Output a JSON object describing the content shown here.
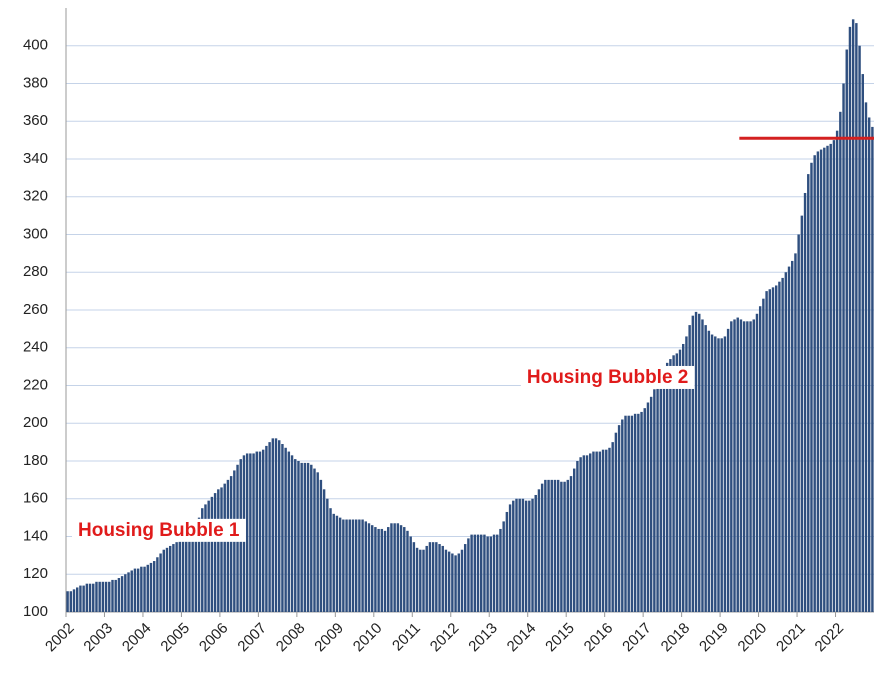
{
  "chart_data": {
    "type": "bar",
    "color": "#2f4f7f",
    "grid": true,
    "ylim": [
      100,
      420
    ],
    "yticks": [
      100,
      120,
      140,
      160,
      180,
      200,
      220,
      240,
      260,
      280,
      300,
      320,
      340,
      360,
      380,
      400
    ],
    "annotations": [
      {
        "text": "Housing Bubble 1",
        "value": 143,
        "index": 0
      },
      {
        "text": "Housing Bubble 2",
        "value": 224,
        "index": 140
      }
    ],
    "reference_line": {
      "value": 351,
      "start": 210,
      "color": "#d42020"
    },
    "categories": [
      "2002",
      null,
      null,
      null,
      null,
      null,
      null,
      null,
      null,
      null,
      null,
      null,
      "2003",
      null,
      null,
      null,
      null,
      null,
      null,
      null,
      null,
      null,
      null,
      null,
      "2004",
      null,
      null,
      null,
      null,
      null,
      null,
      null,
      null,
      null,
      null,
      null,
      "2005",
      null,
      null,
      null,
      null,
      null,
      null,
      null,
      null,
      null,
      null,
      null,
      "2006",
      null,
      null,
      null,
      null,
      null,
      null,
      null,
      null,
      null,
      null,
      null,
      "2007",
      null,
      null,
      null,
      null,
      null,
      null,
      null,
      null,
      null,
      null,
      null,
      "2008",
      null,
      null,
      null,
      null,
      null,
      null,
      null,
      null,
      null,
      null,
      null,
      "2009",
      null,
      null,
      null,
      null,
      null,
      null,
      null,
      null,
      null,
      null,
      null,
      "2010",
      null,
      null,
      null,
      null,
      null,
      null,
      null,
      null,
      null,
      null,
      null,
      "2011",
      null,
      null,
      null,
      null,
      null,
      null,
      null,
      null,
      null,
      null,
      null,
      "2012",
      null,
      null,
      null,
      null,
      null,
      null,
      null,
      null,
      null,
      null,
      null,
      "2013",
      null,
      null,
      null,
      null,
      null,
      null,
      null,
      null,
      null,
      null,
      null,
      "2014",
      null,
      null,
      null,
      null,
      null,
      null,
      null,
      null,
      null,
      null,
      null,
      "2015",
      null,
      null,
      null,
      null,
      null,
      null,
      null,
      null,
      null,
      null,
      null,
      "2016",
      null,
      null,
      null,
      null,
      null,
      null,
      null,
      null,
      null,
      null,
      null,
      "2017",
      null,
      null,
      null,
      null,
      null,
      null,
      null,
      null,
      null,
      null,
      null,
      "2018",
      null,
      null,
      null,
      null,
      null,
      null,
      null,
      null,
      null,
      null,
      null,
      "2019",
      null,
      null,
      null,
      null,
      null,
      null,
      null,
      null,
      null,
      null,
      null,
      "2020",
      null,
      null,
      null,
      null,
      null,
      null,
      null,
      null,
      null,
      null,
      null,
      "2021",
      null,
      null,
      null,
      null,
      null,
      null,
      null,
      null,
      null,
      null,
      null,
      "2022",
      null,
      null,
      null,
      null,
      null,
      null,
      null,
      null,
      null,
      null,
      null
    ],
    "values": [
      111,
      111,
      112,
      113,
      114,
      114,
      115,
      115,
      115,
      116,
      116,
      116,
      116,
      116,
      117,
      117,
      118,
      119,
      120,
      121,
      122,
      123,
      123,
      124,
      124,
      125,
      126,
      127,
      129,
      131,
      133,
      134,
      135,
      136,
      137,
      138,
      138,
      139,
      140,
      142,
      145,
      150,
      155,
      157,
      159,
      161,
      163,
      165,
      166,
      168,
      170,
      172,
      175,
      178,
      181,
      183,
      184,
      184,
      184,
      185,
      185,
      186,
      188,
      190,
      192,
      192,
      191,
      189,
      187,
      185,
      183,
      181,
      180,
      179,
      179,
      179,
      178,
      176,
      174,
      170,
      165,
      160,
      155,
      152,
      151,
      150,
      149,
      149,
      149,
      149,
      149,
      149,
      149,
      148,
      147,
      146,
      145,
      144,
      144,
      143,
      145,
      147,
      147,
      147,
      146,
      145,
      143,
      140,
      137,
      134,
      133,
      133,
      135,
      137,
      137,
      137,
      136,
      135,
      133,
      132,
      131,
      130,
      131,
      133,
      136,
      139,
      141,
      141,
      141,
      141,
      141,
      140,
      140,
      141,
      141,
      144,
      148,
      153,
      157,
      159,
      160,
      160,
      160,
      159,
      159,
      160,
      162,
      165,
      168,
      170,
      170,
      170,
      170,
      170,
      169,
      169,
      170,
      172,
      176,
      180,
      182,
      183,
      183,
      184,
      185,
      185,
      185,
      186,
      186,
      187,
      190,
      195,
      199,
      202,
      204,
      204,
      204,
      205,
      205,
      206,
      208,
      211,
      214,
      218,
      222,
      226,
      230,
      232,
      234,
      236,
      237,
      239,
      242,
      246,
      252,
      257,
      259,
      258,
      255,
      252,
      249,
      247,
      246,
      245,
      245,
      246,
      250,
      254,
      255,
      256,
      255,
      254,
      254,
      254,
      255,
      258,
      262,
      266,
      270,
      271,
      272,
      273,
      275,
      277,
      280,
      283,
      286,
      290,
      300,
      310,
      322,
      332,
      338,
      342,
      344,
      345,
      346,
      347,
      348,
      350,
      355,
      365,
      380,
      398,
      410,
      414,
      412,
      400,
      385,
      370,
      362,
      357
    ]
  }
}
